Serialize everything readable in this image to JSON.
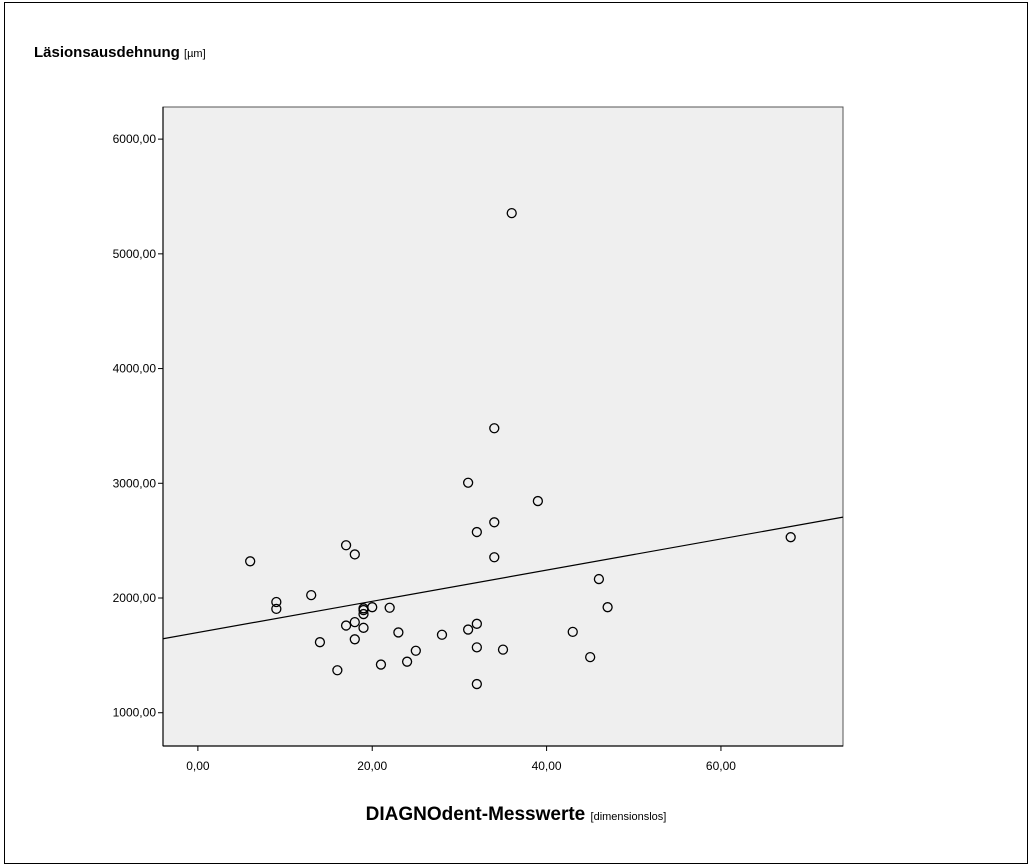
{
  "chart_data": {
    "type": "scatter",
    "title": "",
    "ylabel": "Läsionsausdehnung",
    "ylabel_unit": "[µm]",
    "xlabel": "DIAGNOdent-Messwerte",
    "xlabel_unit": "[dimensionslos]",
    "xlim": [
      -4,
      74
    ],
    "ylim": [
      710,
      6280
    ],
    "x_ticks": [
      0,
      20,
      40,
      60
    ],
    "x_tick_labels": [
      "0,00",
      "20,00",
      "40,00",
      "60,00"
    ],
    "y_ticks": [
      1000,
      2000,
      3000,
      4000,
      5000,
      6000
    ],
    "y_tick_labels": [
      "1000,00",
      "2000,00",
      "3000,00",
      "4000,00",
      "5000,00",
      "6000,00"
    ],
    "grid": false,
    "plot_background": "#efefef",
    "points": [
      {
        "x": 6,
        "y": 2320
      },
      {
        "x": 9,
        "y": 1965
      },
      {
        "x": 9,
        "y": 1905
      },
      {
        "x": 13,
        "y": 2025
      },
      {
        "x": 14,
        "y": 1615
      },
      {
        "x": 16,
        "y": 1370
      },
      {
        "x": 17,
        "y": 2460
      },
      {
        "x": 17,
        "y": 1760
      },
      {
        "x": 18,
        "y": 2380
      },
      {
        "x": 18,
        "y": 1790
      },
      {
        "x": 18,
        "y": 1640
      },
      {
        "x": 19,
        "y": 1910
      },
      {
        "x": 19,
        "y": 1895
      },
      {
        "x": 19,
        "y": 1860
      },
      {
        "x": 19,
        "y": 1740
      },
      {
        "x": 20,
        "y": 1920
      },
      {
        "x": 21,
        "y": 1420
      },
      {
        "x": 22,
        "y": 1915
      },
      {
        "x": 23,
        "y": 1700
      },
      {
        "x": 24,
        "y": 1445
      },
      {
        "x": 25,
        "y": 1540
      },
      {
        "x": 28,
        "y": 1680
      },
      {
        "x": 31,
        "y": 3005
      },
      {
        "x": 31,
        "y": 1725
      },
      {
        "x": 32,
        "y": 2575
      },
      {
        "x": 32,
        "y": 1775
      },
      {
        "x": 32,
        "y": 1570
      },
      {
        "x": 32,
        "y": 1250
      },
      {
        "x": 34,
        "y": 3480
      },
      {
        "x": 34,
        "y": 2660
      },
      {
        "x": 34,
        "y": 2355
      },
      {
        "x": 35,
        "y": 1550
      },
      {
        "x": 36,
        "y": 5355
      },
      {
        "x": 39,
        "y": 2845
      },
      {
        "x": 43,
        "y": 1705
      },
      {
        "x": 45,
        "y": 1485
      },
      {
        "x": 46,
        "y": 2165
      },
      {
        "x": 47,
        "y": 1920
      },
      {
        "x": 68,
        "y": 2530
      }
    ],
    "fit_line": {
      "x": [
        -4,
        74
      ],
      "y": [
        1645,
        2705
      ]
    }
  }
}
